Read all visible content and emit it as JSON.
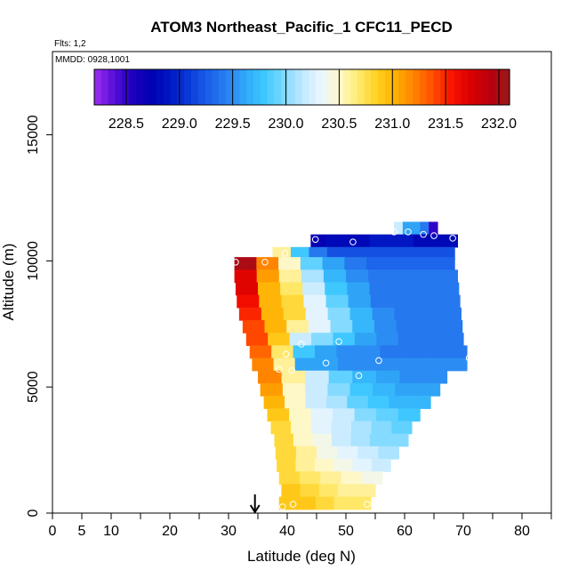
{
  "chart_data": {
    "type": "heatmap",
    "title": "ATOM3 Northeast_Pacific_1 CFC11_PECD",
    "flights_label": "Flts: 1,2",
    "mmdd_label": "MMDD: 0928,1001",
    "xlabel": "Latitude (deg N)",
    "ylabel": "Altitude (m)",
    "xlim": [
      0,
      85
    ],
    "ylim": [
      0,
      18300
    ],
    "x_ticks": [
      0,
      5,
      10,
      20,
      30,
      40,
      50,
      60,
      70,
      80
    ],
    "x_minor_ticks": [
      15,
      25,
      35,
      45,
      55,
      65,
      75,
      85
    ],
    "y_ticks": [
      0,
      5000,
      10000,
      15000
    ],
    "colorbar": {
      "ticks": [
        "228.5",
        "229.0",
        "229.5",
        "230.0",
        "230.5",
        "231.0",
        "231.5",
        "232.0"
      ],
      "min": 228.2,
      "max": 232.1,
      "colors": [
        "#9d2ef0",
        "#5b0fd8",
        "#1f00c0",
        "#0000b0",
        "#0018c4",
        "#0a3ad8",
        "#1a5ee8",
        "#2980f0",
        "#30a8f8",
        "#3cc8ff",
        "#7ad8ff",
        "#bfe8ff",
        "#eaf6ff",
        "#fff8c8",
        "#ffea70",
        "#ffd020",
        "#ffae00",
        "#ff8000",
        "#ff4a00",
        "#f81000",
        "#d80000",
        "#b80010",
        "#9a1a1a"
      ]
    },
    "arrow_latitude": 34.5,
    "curtain_rows": [
      {
        "alt": 11300,
        "lat_start": 58.2,
        "lat_end": 65.6,
        "values": [
          230.2,
          229.6,
          229.6,
          229.4,
          228.5
        ]
      },
      {
        "alt": 10800,
        "lat_start": 44.0,
        "lat_end": 69.0,
        "values": [
          228.7,
          228.8,
          228.8,
          228.8,
          228.9,
          228.9,
          228.9,
          228.8,
          228.8,
          228.8
        ]
      },
      {
        "alt": 10300,
        "lat_start": 37.5,
        "lat_end": 68.5,
        "values": [
          230.6,
          229.8,
          229.4,
          229.2,
          229.2,
          229.2,
          229.2,
          229.2,
          229.2,
          229.2
        ]
      },
      {
        "alt": 9900,
        "lat_start": 31.0,
        "lat_end": 68.5,
        "values": [
          232.0,
          231.2,
          230.5,
          229.9,
          229.6,
          229.4,
          229.3,
          229.3,
          229.3,
          229.3
        ]
      },
      {
        "alt": 9400,
        "lat_start": 31.0,
        "lat_end": 69.0,
        "values": [
          231.7,
          231.1,
          230.6,
          230.1,
          229.7,
          229.5,
          229.4,
          229.4,
          229.4,
          229.4
        ]
      },
      {
        "alt": 8900,
        "lat_start": 31.2,
        "lat_end": 69.2,
        "values": [
          231.7,
          231.0,
          230.7,
          230.2,
          229.8,
          229.6,
          229.4,
          229.4,
          229.4,
          229.4
        ]
      },
      {
        "alt": 8400,
        "lat_start": 31.4,
        "lat_end": 69.4,
        "values": [
          231.6,
          231.0,
          230.8,
          230.3,
          229.9,
          229.6,
          229.4,
          229.4,
          229.4,
          229.4
        ]
      },
      {
        "alt": 7900,
        "lat_start": 31.8,
        "lat_end": 69.6,
        "values": [
          231.5,
          231.0,
          230.8,
          230.3,
          230.0,
          229.7,
          229.5,
          229.4,
          229.4,
          229.4
        ]
      },
      {
        "alt": 7400,
        "lat_start": 32.4,
        "lat_end": 69.8,
        "values": [
          231.4,
          231.0,
          230.6,
          230.3,
          230.0,
          229.7,
          229.5,
          229.4,
          229.4,
          229.4
        ]
      },
      {
        "alt": 6900,
        "lat_start": 33.0,
        "lat_end": 70.0,
        "values": [
          231.4,
          230.9,
          230.2,
          230.0,
          229.8,
          229.6,
          229.5,
          229.4,
          229.4,
          229.4
        ]
      },
      {
        "alt": 6400,
        "lat_start": 33.6,
        "lat_end": 70.6,
        "values": [
          231.3,
          230.7,
          229.8,
          229.6,
          229.5,
          229.5,
          229.4,
          229.4,
          229.4,
          229.4
        ]
      },
      {
        "alt": 5900,
        "lat_start": 34.0,
        "lat_end": 70.6,
        "values": [
          231.2,
          230.6,
          229.6,
          229.6,
          229.5,
          229.5,
          229.5,
          229.5,
          229.5,
          229.5
        ]
      },
      {
        "alt": 5400,
        "lat_start": 35.0,
        "lat_end": 67.2,
        "values": [
          231.2,
          230.6,
          230.2,
          229.9,
          229.7,
          229.6,
          229.5,
          229.5
        ]
      },
      {
        "alt": 4900,
        "lat_start": 35.4,
        "lat_end": 66.0,
        "values": [
          231.1,
          230.5,
          230.2,
          230.0,
          229.8,
          229.7,
          229.6,
          229.6
        ]
      },
      {
        "alt": 4400,
        "lat_start": 36.0,
        "lat_end": 64.4,
        "values": [
          231.0,
          230.5,
          230.2,
          230.1,
          229.9,
          229.8,
          229.7,
          229.7
        ]
      },
      {
        "alt": 3900,
        "lat_start": 36.6,
        "lat_end": 62.6,
        "values": [
          230.9,
          230.5,
          230.3,
          230.2,
          230.0,
          229.9,
          229.8
        ]
      },
      {
        "alt": 3400,
        "lat_start": 37.2,
        "lat_end": 61.2,
        "values": [
          230.8,
          230.5,
          230.3,
          230.2,
          230.1,
          230.0,
          229.9
        ]
      },
      {
        "alt": 2900,
        "lat_start": 37.8,
        "lat_end": 60.6,
        "values": [
          230.8,
          230.5,
          230.4,
          230.2,
          230.1,
          230.0,
          230.0
        ]
      },
      {
        "alt": 2400,
        "lat_start": 38.0,
        "lat_end": 59.0,
        "values": [
          230.8,
          230.6,
          230.4,
          230.3,
          230.2,
          230.1
        ]
      },
      {
        "alt": 1900,
        "lat_start": 38.2,
        "lat_end": 57.6,
        "values": [
          230.8,
          230.6,
          230.5,
          230.4,
          230.3,
          230.2
        ]
      },
      {
        "alt": 1400,
        "lat_start": 38.6,
        "lat_end": 56.2,
        "values": [
          230.8,
          230.7,
          230.6,
          230.5,
          230.4
        ]
      },
      {
        "alt": 900,
        "lat_start": 39.0,
        "lat_end": 55.0,
        "values": [
          230.9,
          230.8,
          230.7,
          230.6,
          230.6
        ]
      },
      {
        "alt": 400,
        "lat_start": 38.6,
        "lat_end": 54.2,
        "values": [
          230.9,
          230.9,
          230.8,
          230.7,
          230.7
        ]
      }
    ],
    "sample_points": [
      {
        "lat": 31.2,
        "alt": 9950
      },
      {
        "lat": 36.2,
        "alt": 9950
      },
      {
        "lat": 39.6,
        "alt": 10300
      },
      {
        "lat": 44.8,
        "alt": 10850
      },
      {
        "lat": 51.2,
        "alt": 10750
      },
      {
        "lat": 58.2,
        "alt": 11150
      },
      {
        "lat": 60.6,
        "alt": 11150
      },
      {
        "lat": 63.2,
        "alt": 11050
      },
      {
        "lat": 65.0,
        "alt": 11000
      },
      {
        "lat": 68.2,
        "alt": 10900
      },
      {
        "lat": 42.4,
        "alt": 6700
      },
      {
        "lat": 48.8,
        "alt": 6800
      },
      {
        "lat": 39.8,
        "alt": 6300
      },
      {
        "lat": 38.6,
        "alt": 5700
      },
      {
        "lat": 40.8,
        "alt": 5650
      },
      {
        "lat": 46.6,
        "alt": 5950
      },
      {
        "lat": 52.2,
        "alt": 5450
      },
      {
        "lat": 55.6,
        "alt": 6050
      },
      {
        "lat": 71.0,
        "alt": 6150
      },
      {
        "lat": 39.2,
        "alt": 250
      },
      {
        "lat": 41.0,
        "alt": 350
      },
      {
        "lat": 53.6,
        "alt": 350
      }
    ]
  }
}
